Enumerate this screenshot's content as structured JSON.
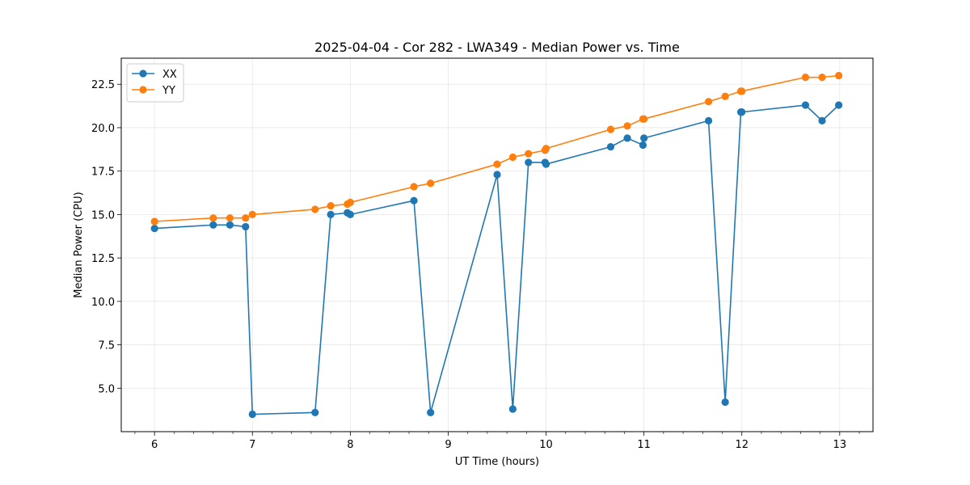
{
  "chart_data": {
    "type": "line",
    "title": "2025-04-04 - Cor 282 - LWA349 - Median Power vs. Time",
    "xlabel": "UT Time (hours)",
    "ylabel": "Median Power (CPU)",
    "xlim": [
      5.66,
      13.34
    ],
    "ylim": [
      2.5,
      24.0
    ],
    "xticks": [
      6,
      7,
      8,
      9,
      10,
      11,
      12,
      13
    ],
    "xtick_labels": [
      "6",
      "7",
      "8",
      "9",
      "10",
      "11",
      "12",
      "13"
    ],
    "yticks": [
      5.0,
      7.5,
      10.0,
      12.5,
      15.0,
      17.5,
      20.0,
      22.5
    ],
    "ytick_labels": [
      "5.0",
      "7.5",
      "10.0",
      "12.5",
      "15.0",
      "17.5",
      "20.0",
      "22.5"
    ],
    "grid": true,
    "legend_position": "top-left",
    "series": [
      {
        "name": "XX",
        "color": "#1f77b4",
        "x": [
          6.0,
          6.6,
          6.77,
          6.93,
          7.0,
          7.64,
          7.8,
          7.97,
          8.0,
          8.65,
          8.82,
          9.5,
          9.66,
          9.82,
          9.99,
          10.0,
          10.66,
          10.83,
          10.99,
          11.0,
          11.66,
          11.83,
          11.99,
          12.0,
          12.65,
          12.82,
          12.99
        ],
        "y": [
          14.2,
          14.4,
          14.4,
          14.3,
          3.5,
          3.6,
          15.0,
          15.1,
          15.0,
          15.8,
          3.6,
          17.3,
          3.8,
          18.0,
          18.0,
          17.9,
          18.9,
          19.4,
          19.0,
          19.4,
          20.4,
          4.2,
          20.9,
          20.9,
          21.3,
          20.4,
          21.3
        ]
      },
      {
        "name": "YY",
        "color": "#ff7f0e",
        "x": [
          6.0,
          6.6,
          6.77,
          6.93,
          7.0,
          7.64,
          7.8,
          7.97,
          8.0,
          8.65,
          8.82,
          9.5,
          9.66,
          9.82,
          9.99,
          10.0,
          10.66,
          10.83,
          10.99,
          11.0,
          11.66,
          11.83,
          11.99,
          12.0,
          12.65,
          12.82,
          12.99
        ],
        "y": [
          14.6,
          14.8,
          14.8,
          14.8,
          15.0,
          15.3,
          15.5,
          15.6,
          15.7,
          16.6,
          16.8,
          17.9,
          18.3,
          18.5,
          18.7,
          18.8,
          19.9,
          20.1,
          20.5,
          20.5,
          21.5,
          21.8,
          22.1,
          22.1,
          22.9,
          22.9,
          23.0
        ]
      }
    ]
  }
}
